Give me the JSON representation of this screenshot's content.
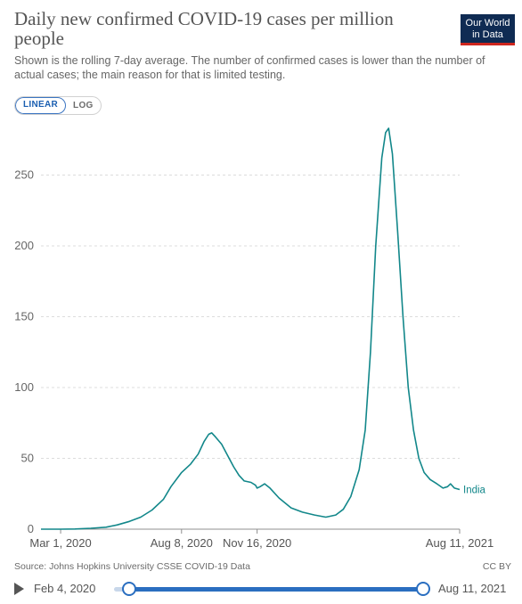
{
  "header": {
    "title": "Daily new confirmed COVID-19 cases per million people",
    "subtitle": "Shown is the rolling 7-day average. The number of confirmed cases is lower than the number of actual cases; the main reason for that is limited testing.",
    "logo_line1": "Our World",
    "logo_line2": "in Data"
  },
  "controls": {
    "linear_label": "LINEAR",
    "log_label": "LOG",
    "selected": "LINEAR"
  },
  "footer": {
    "source": "Source: Johns Hopkins University CSSE COVID-19 Data",
    "license": "CC BY"
  },
  "timeline": {
    "start_label": "Feb 4, 2020",
    "end_label": "Aug 11, 2021"
  },
  "colors": {
    "line": "#12878a",
    "grid": "#dcdcdc",
    "accent": "#2a6ec0"
  },
  "chart_data": {
    "type": "line",
    "title": "Daily new confirmed COVID-19 cases per million people",
    "x_ticks": [
      "Mar 1, 2020",
      "Aug 8, 2020",
      "Nov 16, 2020",
      "Aug 11, 2021"
    ],
    "y_ticks": [
      0,
      50,
      100,
      150,
      200,
      250
    ],
    "ylim": [
      0,
      283
    ],
    "xlim": [
      "2020-02-04",
      "2021-08-11"
    ],
    "grid": "horizontal dashed",
    "series": [
      {
        "name": "India",
        "points": [
          [
            "2020-02-04",
            0
          ],
          [
            "2020-03-01",
            0
          ],
          [
            "2020-03-20",
            0.1
          ],
          [
            "2020-04-10",
            0.6
          ],
          [
            "2020-04-30",
            1.4
          ],
          [
            "2020-05-15",
            3
          ],
          [
            "2020-05-31",
            5.5
          ],
          [
            "2020-06-15",
            8.5
          ],
          [
            "2020-06-30",
            13.5
          ],
          [
            "2020-07-15",
            21
          ],
          [
            "2020-07-25",
            30
          ],
          [
            "2020-08-08",
            40
          ],
          [
            "2020-08-20",
            46
          ],
          [
            "2020-08-30",
            53
          ],
          [
            "2020-09-07",
            62
          ],
          [
            "2020-09-13",
            67
          ],
          [
            "2020-09-17",
            68
          ],
          [
            "2020-09-22",
            65
          ],
          [
            "2020-09-30",
            60
          ],
          [
            "2020-10-08",
            52
          ],
          [
            "2020-10-16",
            44
          ],
          [
            "2020-10-23",
            38
          ],
          [
            "2020-10-30",
            34
          ],
          [
            "2020-11-08",
            33
          ],
          [
            "2020-11-14",
            31
          ],
          [
            "2020-11-16",
            29
          ],
          [
            "2020-11-20",
            30
          ],
          [
            "2020-11-26",
            32
          ],
          [
            "2020-12-03",
            29
          ],
          [
            "2020-12-15",
            22
          ],
          [
            "2020-12-31",
            15
          ],
          [
            "2021-01-15",
            12
          ],
          [
            "2021-01-31",
            10
          ],
          [
            "2021-02-15",
            8.5
          ],
          [
            "2021-02-28",
            10
          ],
          [
            "2021-03-10",
            14
          ],
          [
            "2021-03-20",
            23
          ],
          [
            "2021-03-31",
            42
          ],
          [
            "2021-04-08",
            70
          ],
          [
            "2021-04-15",
            125
          ],
          [
            "2021-04-22",
            200
          ],
          [
            "2021-04-30",
            262
          ],
          [
            "2021-05-05",
            280
          ],
          [
            "2021-05-09",
            283
          ],
          [
            "2021-05-14",
            265
          ],
          [
            "2021-05-21",
            210
          ],
          [
            "2021-05-28",
            150
          ],
          [
            "2021-06-04",
            100
          ],
          [
            "2021-06-11",
            70
          ],
          [
            "2021-06-18",
            50
          ],
          [
            "2021-06-25",
            40
          ],
          [
            "2021-07-03",
            35
          ],
          [
            "2021-07-12",
            32
          ],
          [
            "2021-07-20",
            29
          ],
          [
            "2021-07-26",
            30
          ],
          [
            "2021-07-30",
            32
          ],
          [
            "2021-08-04",
            29
          ],
          [
            "2021-08-11",
            28
          ]
        ]
      }
    ]
  }
}
